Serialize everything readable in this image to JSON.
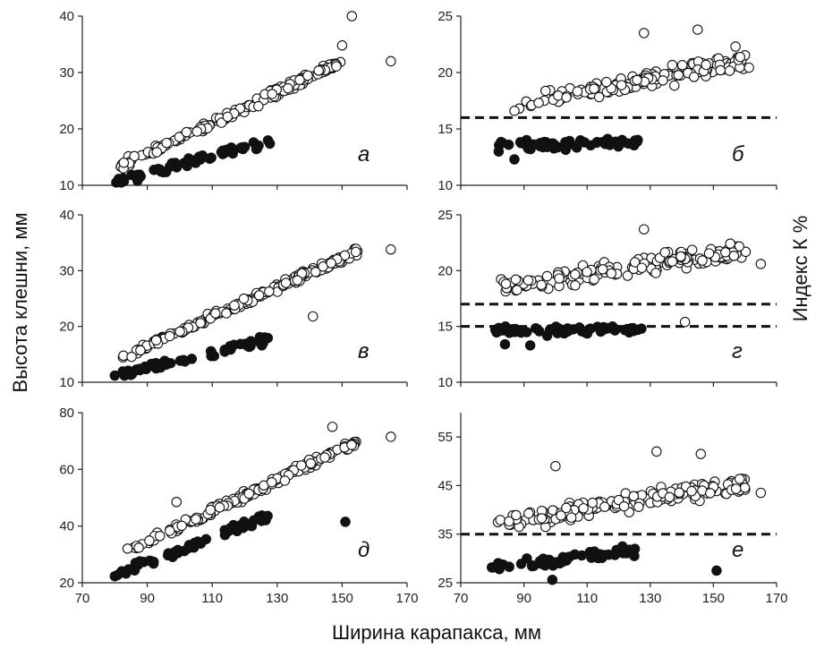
{
  "figure": {
    "xlabel": "Ширина карапакса, мм",
    "ylabel_left": "Высота клешни, мм",
    "ylabel_right": "Индекс  К %"
  },
  "chart_data": [
    {
      "type": "scatter",
      "panel": "а",
      "xlim": [
        70,
        170
      ],
      "ylim": [
        10,
        40
      ],
      "xticks": [
        70,
        90,
        110,
        130,
        150,
        170
      ],
      "yticks": [
        10,
        20,
        30,
        40
      ],
      "open_trend": {
        "x": [
          82,
          150
        ],
        "y": [
          13.5,
          32
        ]
      },
      "filled_trend": {
        "x": [
          80,
          128
        ],
        "y": [
          10.8,
          17.8
        ]
      },
      "outliers": {
        "open": [
          [
            153,
            40
          ],
          [
            165,
            32
          ],
          [
            150,
            34.8
          ]
        ],
        "filled": [
          [
            82,
            10.5
          ],
          [
            87,
            10.8
          ]
        ]
      },
      "reference_lines": []
    },
    {
      "type": "scatter",
      "panel": "б",
      "xlim": [
        70,
        170
      ],
      "ylim": [
        10,
        25
      ],
      "xticks": [
        70,
        90,
        110,
        130,
        150,
        170
      ],
      "yticks": [
        10,
        15,
        20,
        25
      ],
      "open_trend": {
        "x": [
          87,
          160
        ],
        "y": [
          17,
          21
        ]
      },
      "filled_trend": {
        "x": [
          82,
          127
        ],
        "y": [
          13.5,
          13.8
        ]
      },
      "outliers": {
        "open": [
          [
            145,
            23.8
          ],
          [
            157,
            22.3
          ],
          [
            128,
            23.5
          ],
          [
            87,
            16.6
          ]
        ],
        "filled": [
          [
            82,
            13
          ],
          [
            87,
            12.3
          ]
        ]
      },
      "reference_lines": [
        16
      ]
    },
    {
      "type": "scatter",
      "panel": "в",
      "xlim": [
        70,
        170
      ],
      "ylim": [
        10,
        40
      ],
      "xticks": [
        70,
        90,
        110,
        130,
        150,
        170
      ],
      "yticks": [
        10,
        20,
        30,
        40
      ],
      "open_trend": {
        "x": [
          82,
          155
        ],
        "y": [
          14.5,
          33.5
        ]
      },
      "filled_trend": {
        "x": [
          80,
          128
        ],
        "y": [
          11,
          18
        ]
      },
      "outliers": {
        "open": [
          [
            165,
            33.8
          ],
          [
            141,
            21.8
          ]
        ],
        "filled": [
          [
            80,
            11.2
          ],
          [
            85,
            11.8
          ]
        ]
      },
      "reference_lines": []
    },
    {
      "type": "scatter",
      "panel": "г",
      "xlim": [
        70,
        170
      ],
      "ylim": [
        10,
        25
      ],
      "xticks": [
        70,
        90,
        110,
        130,
        150,
        170
      ],
      "yticks": [
        10,
        15,
        20,
        25
      ],
      "open_trend": {
        "x": [
          83,
          160
        ],
        "y": [
          18.5,
          21.8
        ]
      },
      "filled_trend": {
        "x": [
          80,
          127
        ],
        "y": [
          14.5,
          14.8
        ]
      },
      "outliers": {
        "open": [
          [
            165,
            20.6
          ],
          [
            141,
            15.4
          ],
          [
            128,
            23.7
          ]
        ],
        "filled": [
          [
            84,
            13.4
          ],
          [
            92,
            13.3
          ]
        ]
      },
      "reference_lines": [
        15,
        17
      ]
    },
    {
      "type": "scatter",
      "panel": "д",
      "xlim": [
        70,
        170
      ],
      "ylim": [
        20,
        80
      ],
      "xticks": [
        70,
        90,
        110,
        130,
        150,
        170
      ],
      "yticks": [
        20,
        40,
        60,
        80
      ],
      "open_trend": {
        "x": [
          82,
          155
        ],
        "y": [
          30,
          70
        ]
      },
      "filled_trend": {
        "x": [
          80,
          128
        ],
        "y": [
          22.5,
          44
        ]
      },
      "outliers": {
        "open": [
          [
            165,
            71.5
          ],
          [
            99,
            48.5
          ],
          [
            147,
            75
          ]
        ],
        "filled": [
          [
            151,
            41.5
          ],
          [
            80,
            22.3
          ]
        ]
      },
      "reference_lines": []
    },
    {
      "type": "scatter",
      "panel": "е",
      "xlim": [
        70,
        170
      ],
      "ylim": [
        25,
        60
      ],
      "xticks": [
        70,
        90,
        110,
        130,
        150,
        170
      ],
      "yticks": [
        25,
        35,
        45,
        55
      ],
      "open_trend": {
        "x": [
          82,
          160
        ],
        "y": [
          37,
          45.5
        ]
      },
      "filled_trend": {
        "x": [
          80,
          125
        ],
        "y": [
          28,
          31.5
        ]
      },
      "outliers": {
        "open": [
          [
            165,
            43.5
          ],
          [
            100,
            49
          ],
          [
            132,
            52
          ],
          [
            146,
            51.5
          ]
        ],
        "filled": [
          [
            151,
            27.5
          ],
          [
            99,
            25.6
          ]
        ]
      },
      "reference_lines": [
        35
      ]
    }
  ]
}
